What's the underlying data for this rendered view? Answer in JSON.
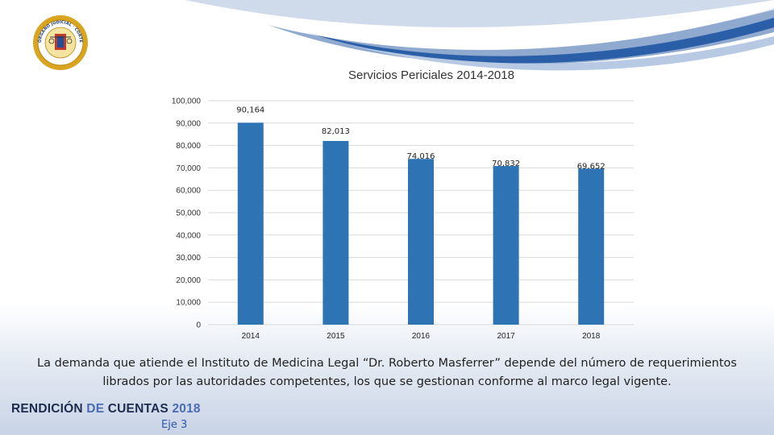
{
  "header": {
    "seal_text": "ÓRGANO JUDICIAL · CORTE SUPREMA DE JUSTICIA"
  },
  "chart_data": {
    "type": "bar",
    "title": "Servicios Periciales 2014-2018",
    "categories": [
      "2014",
      "2015",
      "2016",
      "2017",
      "2018"
    ],
    "values": [
      90164,
      82013,
      74016,
      70832,
      69652
    ],
    "value_labels": [
      "90,164",
      "82,013",
      "74,016",
      "70,832",
      "69,652"
    ],
    "ylim": [
      0,
      100000
    ],
    "yticks": [
      0,
      10000,
      20000,
      30000,
      40000,
      50000,
      60000,
      70000,
      80000,
      90000,
      100000
    ],
    "ytick_labels": [
      "0",
      "10,000",
      "20,000",
      "30,000",
      "40,000",
      "50,000",
      "60,000",
      "70,000",
      "80,000",
      "90,000",
      "100,000"
    ],
    "xlabel": "",
    "ylabel": "",
    "grid": true,
    "bar_color": "#2e74b5"
  },
  "caption": "La demanda que atiende el Instituto de Medicina Legal “Dr. Roberto Masferrer” depende del número de requerimientos librados por las autoridades competentes, los que se gestionan conforme al marco legal vigente.",
  "footer": {
    "title_part1": "RENDICIÓN ",
    "title_part2": "DE ",
    "title_part3": "CUENTAS ",
    "title_year": "2018",
    "subtitle": "Eje 3"
  },
  "colors": {
    "accent": "#4a6bb5",
    "dark": "#1d2b4f",
    "wave": "#1f5aa6"
  }
}
